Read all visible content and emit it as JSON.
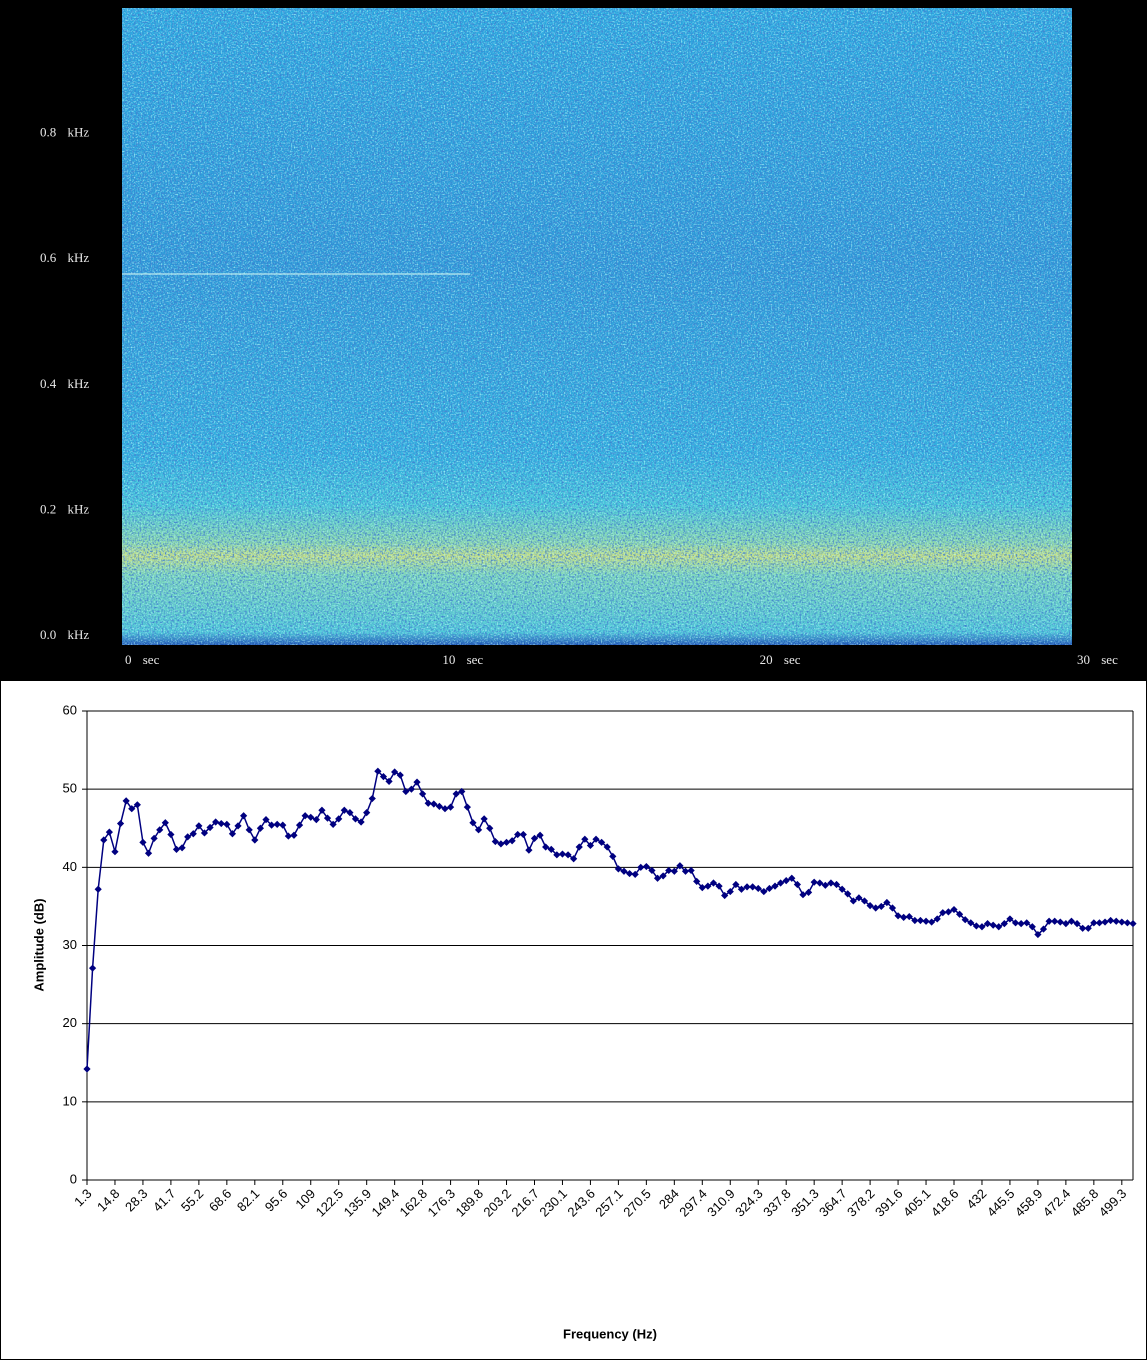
{
  "chart_data": [
    {
      "type": "spectrogram",
      "xlim": [
        0,
        30
      ],
      "xticks": [
        {
          "value": 0,
          "label": "0 sec"
        },
        {
          "value": 10,
          "label": "10 sec"
        },
        {
          "value": 20,
          "label": "20 sec"
        },
        {
          "value": 30,
          "label": "30 sec"
        }
      ],
      "ylim": [
        0,
        1
      ],
      "yticks": [
        {
          "value": 0,
          "label": "0.0 kHz"
        },
        {
          "value": 0.2,
          "label": "0.2 kHz"
        },
        {
          "value": 0.4,
          "label": "0.4 kHz"
        },
        {
          "value": 0.6,
          "label": "0.6 kHz"
        },
        {
          "value": 0.8,
          "label": "0.8 kHz"
        }
      ]
    },
    {
      "type": "line",
      "x_label": "Frequency (Hz)",
      "y_label": "Amplitude (dB)",
      "ylim": [
        0,
        60
      ],
      "yticks": [
        0,
        10,
        20,
        30,
        40,
        50,
        60
      ],
      "grid": true,
      "color": "#000080",
      "marker": "diamond",
      "categories": [
        1.3,
        null,
        null,
        null,
        null,
        14.8,
        null,
        null,
        null,
        null,
        28.3,
        null,
        null,
        null,
        null,
        41.7,
        null,
        null,
        null,
        null,
        55.2,
        null,
        null,
        null,
        null,
        68.6,
        null,
        null,
        null,
        null,
        82.1,
        null,
        null,
        null,
        null,
        95.6,
        null,
        null,
        null,
        null,
        109,
        null,
        null,
        null,
        null,
        122.5,
        null,
        null,
        null,
        null,
        135.9,
        null,
        null,
        null,
        null,
        149.4,
        null,
        null,
        null,
        null,
        162.8,
        null,
        null,
        null,
        null,
        176.3,
        null,
        null,
        null,
        null,
        189.8,
        null,
        null,
        null,
        null,
        203.2,
        null,
        null,
        null,
        null,
        216.7,
        null,
        null,
        null,
        null,
        230.1,
        null,
        null,
        null,
        null,
        243.6,
        null,
        null,
        null,
        null,
        257.1,
        null,
        null,
        null,
        null,
        270.5,
        null,
        null,
        null,
        null,
        284,
        null,
        null,
        null,
        null,
        297.4,
        null,
        null,
        null,
        null,
        310.9,
        null,
        null,
        null,
        null,
        324.3,
        null,
        null,
        null,
        null,
        337.8,
        null,
        null,
        null,
        null,
        351.3,
        null,
        null,
        null,
        null,
        364.7,
        null,
        null,
        null,
        null,
        378.2,
        null,
        null,
        null,
        null,
        391.6,
        null,
        null,
        null,
        null,
        405.1,
        null,
        null,
        null,
        null,
        418.6,
        null,
        null,
        null,
        null,
        432,
        null,
        null,
        null,
        null,
        445.5,
        null,
        null,
        null,
        null,
        458.9,
        null,
        null,
        null,
        null,
        472.4,
        null,
        null,
        null,
        null,
        485.8,
        null,
        null,
        null,
        null,
        499.3,
        null,
        null
      ],
      "values": [
        14.2,
        27.1,
        37.2,
        43.5,
        44.5,
        42.0,
        45.6,
        48.5,
        47.5,
        48.0,
        43.2,
        41.8,
        43.7,
        44.8,
        45.7,
        44.2,
        42.3,
        42.5,
        43.9,
        44.3,
        45.3,
        44.4,
        45.1,
        45.8,
        45.6,
        45.5,
        44.3,
        45.3,
        46.6,
        44.8,
        43.5,
        45.0,
        46.1,
        45.4,
        45.5,
        45.4,
        44.0,
        44.1,
        45.4,
        46.6,
        46.4,
        46.1,
        47.3,
        46.3,
        45.5,
        46.2,
        47.3,
        47.0,
        46.2,
        45.8,
        47.0,
        48.8,
        52.3,
        51.6,
        51.0,
        52.2,
        51.8,
        49.7,
        50.0,
        50.9,
        49.4,
        48.2,
        48.1,
        47.8,
        47.5,
        47.7,
        49.4,
        49.7,
        47.7,
        45.7,
        44.8,
        46.2,
        45.0,
        43.3,
        43.0,
        43.2,
        43.4,
        44.2,
        44.2,
        42.2,
        43.7,
        44.1,
        42.6,
        42.3,
        41.6,
        41.7,
        41.6,
        41.1,
        42.6,
        43.6,
        42.8,
        43.6,
        43.2,
        42.6,
        41.4,
        39.8,
        39.5,
        39.2,
        39.1,
        40.0,
        40.1,
        39.6,
        38.6,
        38.9,
        39.6,
        39.5,
        40.2,
        39.5,
        39.6,
        38.2,
        37.4,
        37.6,
        38.0,
        37.6,
        36.4,
        36.9,
        37.8,
        37.2,
        37.5,
        37.5,
        37.3,
        36.9,
        37.3,
        37.6,
        38.0,
        38.3,
        38.6,
        37.8,
        36.5,
        36.8,
        38.1,
        38.0,
        37.7,
        38.0,
        37.8,
        37.2,
        36.6,
        35.7,
        36.1,
        35.7,
        35.1,
        34.8,
        35.0,
        35.5,
        34.8,
        33.8,
        33.6,
        33.7,
        33.2,
        33.2,
        33.1,
        33.0,
        33.4,
        34.2,
        34.3,
        34.6,
        34.0,
        33.3,
        32.9,
        32.5,
        32.4,
        32.8,
        32.6,
        32.4,
        32.8,
        33.4,
        32.9,
        32.8,
        32.9,
        32.4,
        31.4,
        32.1,
        33.1,
        33.1,
        33.0,
        32.8,
        33.1,
        32.8,
        32.2,
        32.2,
        32.9,
        32.9,
        33.0,
        33.2,
        33.1,
        33.0,
        32.9,
        32.8
      ]
    }
  ]
}
